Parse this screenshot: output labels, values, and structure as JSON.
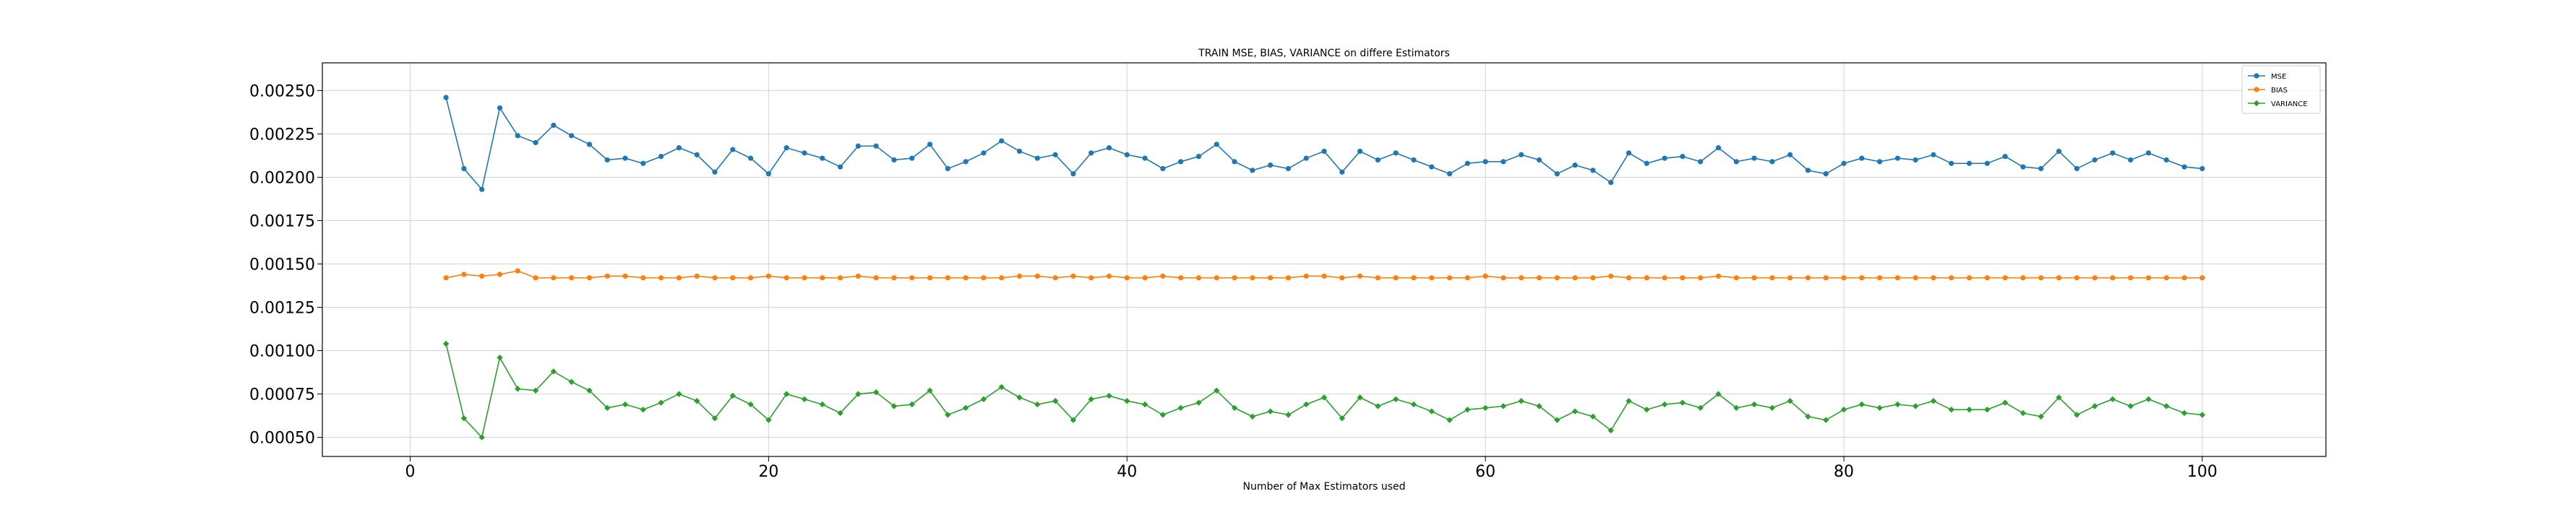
{
  "chart_data": {
    "type": "line",
    "title": "TRAIN MSE, BIAS, VARIANCE on differe Estimators",
    "xlabel": "Number of Max Estimators used",
    "ylabel": "",
    "xlim": [
      -4.9,
      106.9
    ],
    "ylim": [
      0.00039,
      0.00266
    ],
    "xticks": [
      0,
      20,
      40,
      60,
      80,
      100
    ],
    "xtick_labels": [
      "0",
      "20",
      "40",
      "60",
      "80",
      "100"
    ],
    "yticks": [
      0.0005,
      0.00075,
      0.001,
      0.00125,
      0.0015,
      0.00175,
      0.002,
      0.00225,
      0.0025
    ],
    "ytick_labels": [
      "0.00050",
      "0.00075",
      "0.00100",
      "0.00125",
      "0.00150",
      "0.00175",
      "0.00200",
      "0.00225",
      "0.00250"
    ],
    "grid": true,
    "legend_position": "top-right",
    "x": [
      2,
      3,
      4,
      5,
      6,
      7,
      8,
      9,
      10,
      11,
      12,
      13,
      14,
      15,
      16,
      17,
      18,
      19,
      20,
      21,
      22,
      23,
      24,
      25,
      26,
      27,
      28,
      29,
      30,
      31,
      32,
      33,
      34,
      35,
      36,
      37,
      38,
      39,
      40,
      41,
      42,
      43,
      44,
      45,
      46,
      47,
      48,
      49,
      50,
      51,
      52,
      53,
      54,
      55,
      56,
      57,
      58,
      59,
      60,
      61,
      62,
      63,
      64,
      65,
      66,
      67,
      68,
      69,
      70,
      71,
      72,
      73,
      74,
      75,
      76,
      77,
      78,
      79,
      80,
      81,
      82,
      83,
      84,
      85,
      86,
      87,
      88,
      89,
      90,
      91,
      92,
      93,
      94,
      95,
      96,
      97,
      98,
      99,
      100
    ],
    "series": [
      {
        "name": "MSE",
        "color": "#1f77b4",
        "marker": "circle",
        "values": [
          0.00246,
          0.00205,
          0.00193,
          0.0024,
          0.00224,
          0.0022,
          0.0023,
          0.00224,
          0.00219,
          0.0021,
          0.00211,
          0.00208,
          0.00212,
          0.00217,
          0.00213,
          0.00203,
          0.00216,
          0.00211,
          0.00202,
          0.00217,
          0.00214,
          0.00211,
          0.00206,
          0.00218,
          0.00218,
          0.0021,
          0.00211,
          0.00219,
          0.00205,
          0.00209,
          0.00214,
          0.00221,
          0.00215,
          0.00211,
          0.00213,
          0.00202,
          0.00214,
          0.00217,
          0.00213,
          0.00211,
          0.00205,
          0.00209,
          0.00212,
          0.00219,
          0.00209,
          0.00204,
          0.00207,
          0.00205,
          0.00211,
          0.00215,
          0.00203,
          0.00215,
          0.0021,
          0.00214,
          0.0021,
          0.00206,
          0.00202,
          0.00208,
          0.00209,
          0.00209,
          0.00213,
          0.0021,
          0.00202,
          0.00207,
          0.00204,
          0.00197,
          0.00214,
          0.00208,
          0.00211,
          0.00212,
          0.00209,
          0.00217,
          0.00209,
          0.00211,
          0.00209,
          0.00213,
          0.00204,
          0.00202,
          0.00208,
          0.00211,
          0.00209,
          0.00211,
          0.0021,
          0.00213,
          0.00208,
          0.00208,
          0.00208,
          0.00212,
          0.00206,
          0.00205,
          0.00215,
          0.00205,
          0.0021,
          0.00214,
          0.0021,
          0.00214,
          0.0021,
          0.00206,
          0.00205
        ]
      },
      {
        "name": "BIAS",
        "color": "#ff7f0e",
        "marker": "circle",
        "values": [
          0.00142,
          0.00144,
          0.00143,
          0.00144,
          0.00146,
          0.00142,
          0.00142,
          0.00142,
          0.00142,
          0.00143,
          0.00143,
          0.00142,
          0.00142,
          0.00142,
          0.00143,
          0.00142,
          0.00142,
          0.00142,
          0.00143,
          0.00142,
          0.00142,
          0.00142,
          0.00142,
          0.00143,
          0.00142,
          0.00142,
          0.00142,
          0.00142,
          0.00142,
          0.00142,
          0.00142,
          0.00142,
          0.00143,
          0.00143,
          0.00142,
          0.00143,
          0.00142,
          0.00143,
          0.00142,
          0.00142,
          0.00143,
          0.00142,
          0.00142,
          0.00142,
          0.00142,
          0.00142,
          0.00142,
          0.00142,
          0.00143,
          0.00143,
          0.00142,
          0.00143,
          0.00142,
          0.00142,
          0.00142,
          0.00142,
          0.00142,
          0.00142,
          0.00143,
          0.00142,
          0.00142,
          0.00142,
          0.00142,
          0.00142,
          0.00142,
          0.00143,
          0.00142,
          0.00142,
          0.00142,
          0.00142,
          0.00142,
          0.00143,
          0.00142,
          0.00142,
          0.00142,
          0.00142,
          0.00142,
          0.00142,
          0.00142,
          0.00142,
          0.00142,
          0.00142,
          0.00142,
          0.00142,
          0.00142,
          0.00142,
          0.00142,
          0.00142,
          0.00142,
          0.00142,
          0.00142,
          0.00142,
          0.00142,
          0.00142,
          0.00142,
          0.00142,
          0.00142,
          0.00142,
          0.00142
        ]
      },
      {
        "name": "VARIANCE",
        "color": "#2ca02c",
        "marker": "diamond",
        "values": [
          0.00104,
          0.00061,
          0.0005,
          0.00096,
          0.00078,
          0.00077,
          0.00088,
          0.00082,
          0.00077,
          0.00067,
          0.00069,
          0.00066,
          0.0007,
          0.00075,
          0.00071,
          0.00061,
          0.00074,
          0.00069,
          0.0006,
          0.00075,
          0.00072,
          0.00069,
          0.00064,
          0.00075,
          0.00076,
          0.00068,
          0.00069,
          0.00077,
          0.00063,
          0.00067,
          0.00072,
          0.00079,
          0.00073,
          0.00069,
          0.00071,
          0.0006,
          0.00072,
          0.00074,
          0.00071,
          0.00069,
          0.00063,
          0.00067,
          0.0007,
          0.00077,
          0.00067,
          0.00062,
          0.00065,
          0.00063,
          0.00069,
          0.00073,
          0.00061,
          0.00073,
          0.00068,
          0.00072,
          0.00069,
          0.00065,
          0.0006,
          0.00066,
          0.00067,
          0.00068,
          0.00071,
          0.00068,
          0.0006,
          0.00065,
          0.00062,
          0.00054,
          0.00071,
          0.00066,
          0.00069,
          0.0007,
          0.00067,
          0.00075,
          0.00067,
          0.00069,
          0.00067,
          0.00071,
          0.00062,
          0.0006,
          0.00066,
          0.00069,
          0.00067,
          0.00069,
          0.00068,
          0.00071,
          0.00066,
          0.00066,
          0.00066,
          0.0007,
          0.00064,
          0.00062,
          0.00073,
          0.00063,
          0.00068,
          0.00072,
          0.00068,
          0.00072,
          0.00068,
          0.00064,
          0.00063
        ]
      }
    ]
  }
}
